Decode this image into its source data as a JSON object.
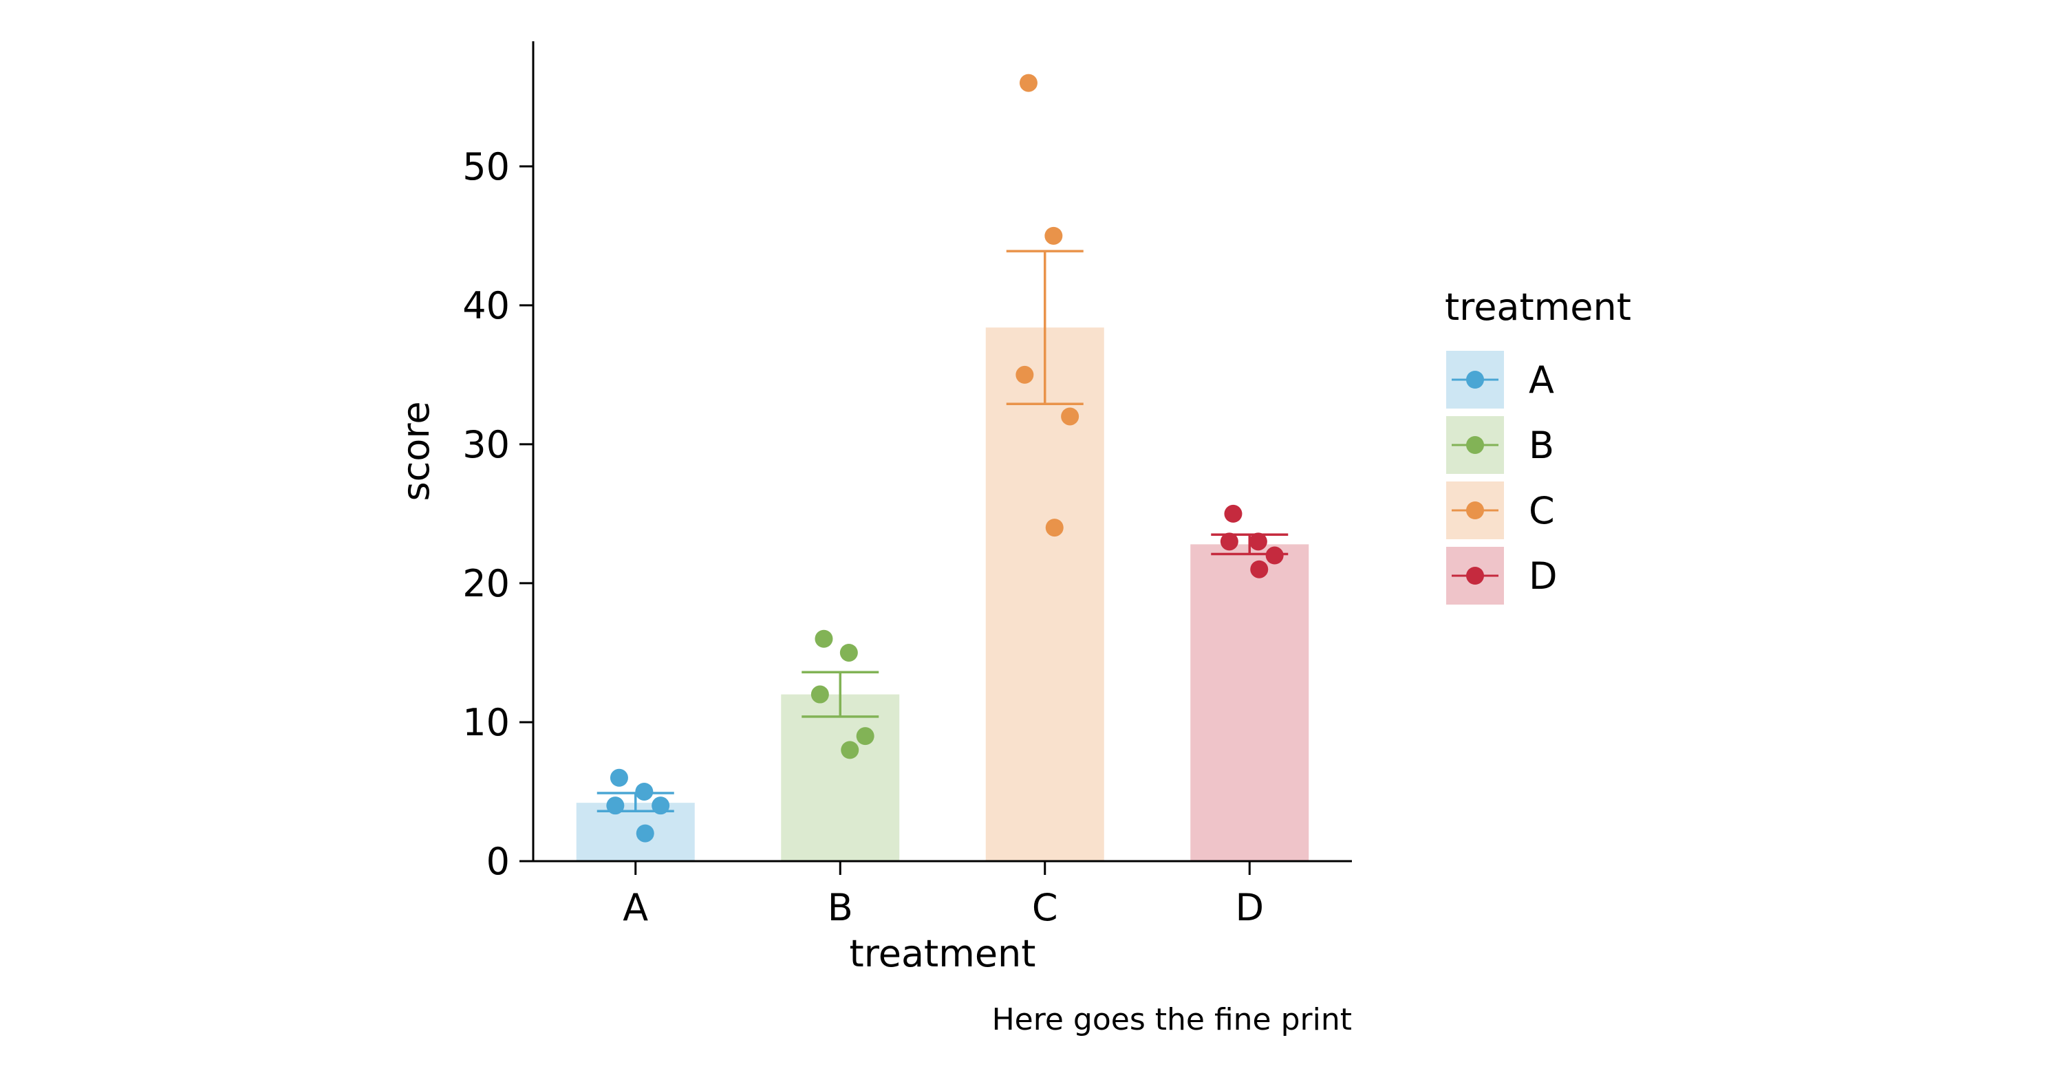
{
  "chart_data": {
    "type": "bar",
    "xlabel": "treatment",
    "ylabel": "score",
    "caption": "Here goes the fine print",
    "ylim": [
      0,
      59
    ],
    "y_ticks": [
      0,
      10,
      20,
      30,
      40,
      50
    ],
    "grid": false,
    "legend": {
      "title": "treatment",
      "placement": "right"
    },
    "categories": [
      "A",
      "B",
      "C",
      "D"
    ],
    "colors": [
      "#4aa6d4",
      "#82b356",
      "#e9934a",
      "#c52a3e"
    ],
    "bar_opacity": 0.28,
    "bars": [
      {
        "category": "A",
        "mean": 4.2,
        "se_low": 3.6,
        "se_high": 4.9,
        "points": [
          6,
          5,
          4,
          4,
          2
        ]
      },
      {
        "category": "B",
        "mean": 12.0,
        "se_low": 10.4,
        "se_high": 13.6,
        "points": [
          16,
          15,
          12,
          9,
          8
        ]
      },
      {
        "category": "C",
        "mean": 38.4,
        "se_low": 32.9,
        "se_high": 43.9,
        "points": [
          56,
          45,
          35,
          32,
          24
        ]
      },
      {
        "category": "D",
        "mean": 22.8,
        "se_low": 22.1,
        "se_high": 23.5,
        "points": [
          25,
          23,
          23,
          22,
          21
        ]
      }
    ]
  }
}
